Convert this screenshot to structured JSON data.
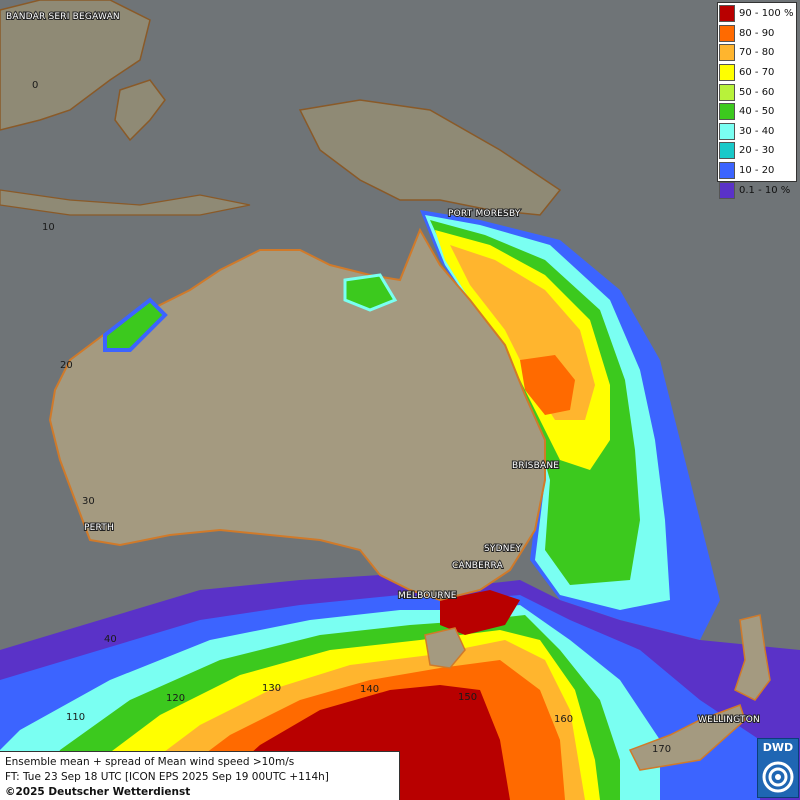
{
  "map": {
    "cities": [
      {
        "id": "bandar",
        "label": "BANDAR SERI BEGAWAN"
      },
      {
        "id": "port-moresby",
        "label": "PORT MORESBY"
      },
      {
        "id": "brisbane",
        "label": "BRISBANE"
      },
      {
        "id": "sydney",
        "label": "SYDNEY"
      },
      {
        "id": "canberra",
        "label": "CANBERRA"
      },
      {
        "id": "melbourne",
        "label": "MELBOURNE"
      },
      {
        "id": "perth",
        "label": "PERTH"
      },
      {
        "id": "wellington",
        "label": "WELLINGTON"
      }
    ],
    "latitude_labels": [
      "0",
      "10",
      "20",
      "30",
      "40"
    ],
    "longitude_labels": [
      "110",
      "120",
      "130",
      "140",
      "150",
      "160",
      "170"
    ]
  },
  "legend": {
    "items": [
      {
        "label": "90 - 100 %",
        "color": "#b80000"
      },
      {
        "label": "80 - 90",
        "color": "#ff6a00"
      },
      {
        "label": "70 - 80",
        "color": "#ffb52e"
      },
      {
        "label": "60 - 70",
        "color": "#ffff00"
      },
      {
        "label": "50 - 60",
        "color": "#b8f23a"
      },
      {
        "label": "40 - 50",
        "color": "#3cc91e"
      },
      {
        "label": "30 - 40",
        "color": "#7afff2"
      },
      {
        "label": "20 - 30",
        "color": "#19c9c9"
      },
      {
        "label": "10 - 20",
        "color": "#3c64ff"
      },
      {
        "label": "0.1 - 10 %",
        "color": "#5a32c8"
      }
    ]
  },
  "info": {
    "line1": "Ensemble mean + spread of Mean wind speed >10m/s",
    "line2": "FT: Tue 23 Sep 18 UTC [ICON EPS 2025 Sep 19 00UTC +114h]",
    "line3": "©2025 Deutscher Wetterdienst"
  },
  "logo": {
    "text": "DWD"
  },
  "colors": {
    "ocean": "#6f7477",
    "land": "#a49a80",
    "coast": "#d07a2a"
  }
}
